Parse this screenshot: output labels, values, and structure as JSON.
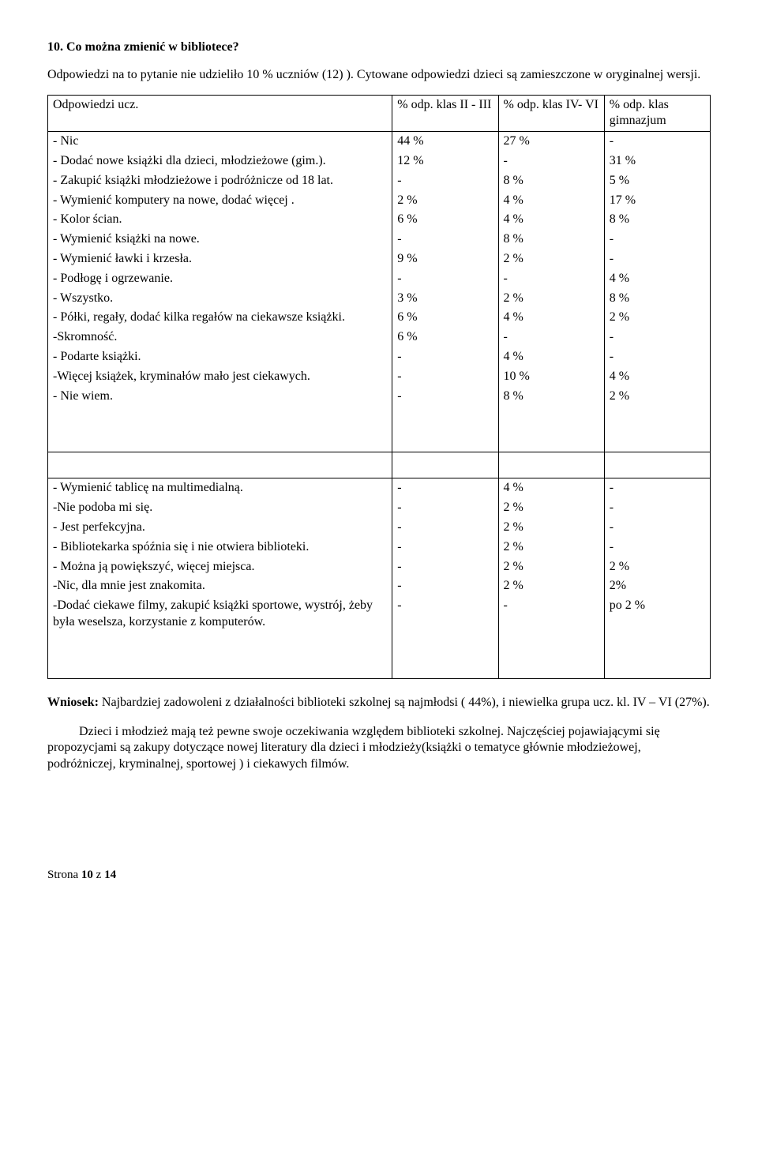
{
  "title": "10. Co można zmienić w bibliotece?",
  "intro": "Odpowiedzi na to pytanie nie udzieliło 10 % uczniów (12) ). Cytowane odpowiedzi dzieci  są zamieszczone w oryginalnej wersji.",
  "table": {
    "header": {
      "c0": "Odpowiedzi ucz.",
      "c1": "% odp. klas II - III",
      "c2": "% odp. klas IV- VI",
      "c3": "% odp. klas gimnazjum"
    },
    "rows1": [
      {
        "label": "- Nic",
        "v1": "44 %",
        "v2": "27 %",
        "v3": "-"
      },
      {
        "label": "- Dodać nowe książki dla dzieci, młodzieżowe (gim.).",
        "v1": "12 %",
        "v2": "-",
        "v3": "31 %"
      },
      {
        "label": "- Zakupić książki młodzieżowe i podróżnicze od 18 lat.",
        "v1": "-",
        "v2": "8 %",
        "v3": "5 %"
      },
      {
        "label": "- Wymienić komputery na nowe, dodać więcej .",
        "v1": "2 %",
        "v2": "4 %",
        "v3": "17 %"
      },
      {
        "label": "- Kolor ścian.",
        "v1": "6 %",
        "v2": "4 %",
        "v3": "8 %"
      },
      {
        "label": "- Wymienić książki na nowe.",
        "v1": "-",
        "v2": "8 %",
        "v3": "-"
      },
      {
        "label": "- Wymienić ławki i krzesła.",
        "v1": "9 %",
        "v2": "2 %",
        "v3": "-"
      },
      {
        "label": "- Podłogę i ogrzewanie.",
        "v1": "-",
        "v2": "-",
        "v3": "4 %"
      },
      {
        "label": "- Wszystko.",
        "v1": "3 %",
        "v2": "2 %",
        "v3": "8 %"
      },
      {
        "label": "- Półki, regały, dodać kilka regałów na ciekawsze książki.",
        "v1": "6 %",
        "v2": "4 %",
        "v3": "2 %"
      },
      {
        "label": "-Skromność.",
        "v1": "6 %",
        "v2": "-",
        "v3": "-"
      },
      {
        "label": "- Podarte książki.",
        "v1": "-",
        "v2": "4 %",
        "v3": "-"
      },
      {
        "label": "-Więcej książek, kryminałów mało jest ciekawych.",
        "v1": "-",
        "v2": "10 %",
        "v3": "4 %"
      },
      {
        "label": "- Nie wiem.",
        "v1": "-",
        "v2": "8 %",
        "v3": "2 %"
      }
    ],
    "rows2": [
      {
        "label": "- Wymienić tablicę na multimedialną.",
        "v1": "-",
        "v2": "4 %",
        "v3": "-"
      },
      {
        "label": "-Nie podoba mi się.",
        "v1": "-",
        "v2": "2 %",
        "v3": "-"
      },
      {
        "label": "- Jest perfekcyjna.",
        "v1": "-",
        "v2": "2 %",
        "v3": "-"
      },
      {
        "label": "- Bibliotekarka spóźnia się i nie otwiera biblioteki.",
        "v1": "-",
        "v2": "2 %",
        "v3": "-"
      },
      {
        "label": "- Można ją powiększyć, więcej miejsca.",
        "v1": "-",
        "v2": "2 %",
        "v3": "2 %"
      },
      {
        "label": "-Nic, dla mnie jest znakomita.",
        "v1": "-",
        "v2": "2 %",
        "v3": "2%"
      },
      {
        "label": "-Dodać ciekawe filmy, zakupić książki sportowe, wystrój, żeby była weselsza, korzystanie z komputerów.",
        "v1": "-",
        "v2": "-",
        "v3": "po 2 %"
      }
    ]
  },
  "wniosek_label": "Wniosek:",
  "wniosek_text": " Najbardziej zadowoleni z działalności biblioteki szkolnej są najmłodsi ( 44%), i niewielka grupa ucz. kl. IV – VI (27%).",
  "para2": "Dzieci i młodzież mają też pewne swoje oczekiwania względem biblioteki szkolnej. Najczęściej pojawiającymi się propozycjami są zakupy dotyczące nowej literatury dla dzieci i młodzieży(książki o tematyce głównie młodzieżowej, podróżniczej, kryminalnej, sportowej ) i ciekawych filmów.",
  "footer_prefix": "Strona ",
  "footer_page": "10",
  "footer_suffix": " z ",
  "footer_total": "14"
}
